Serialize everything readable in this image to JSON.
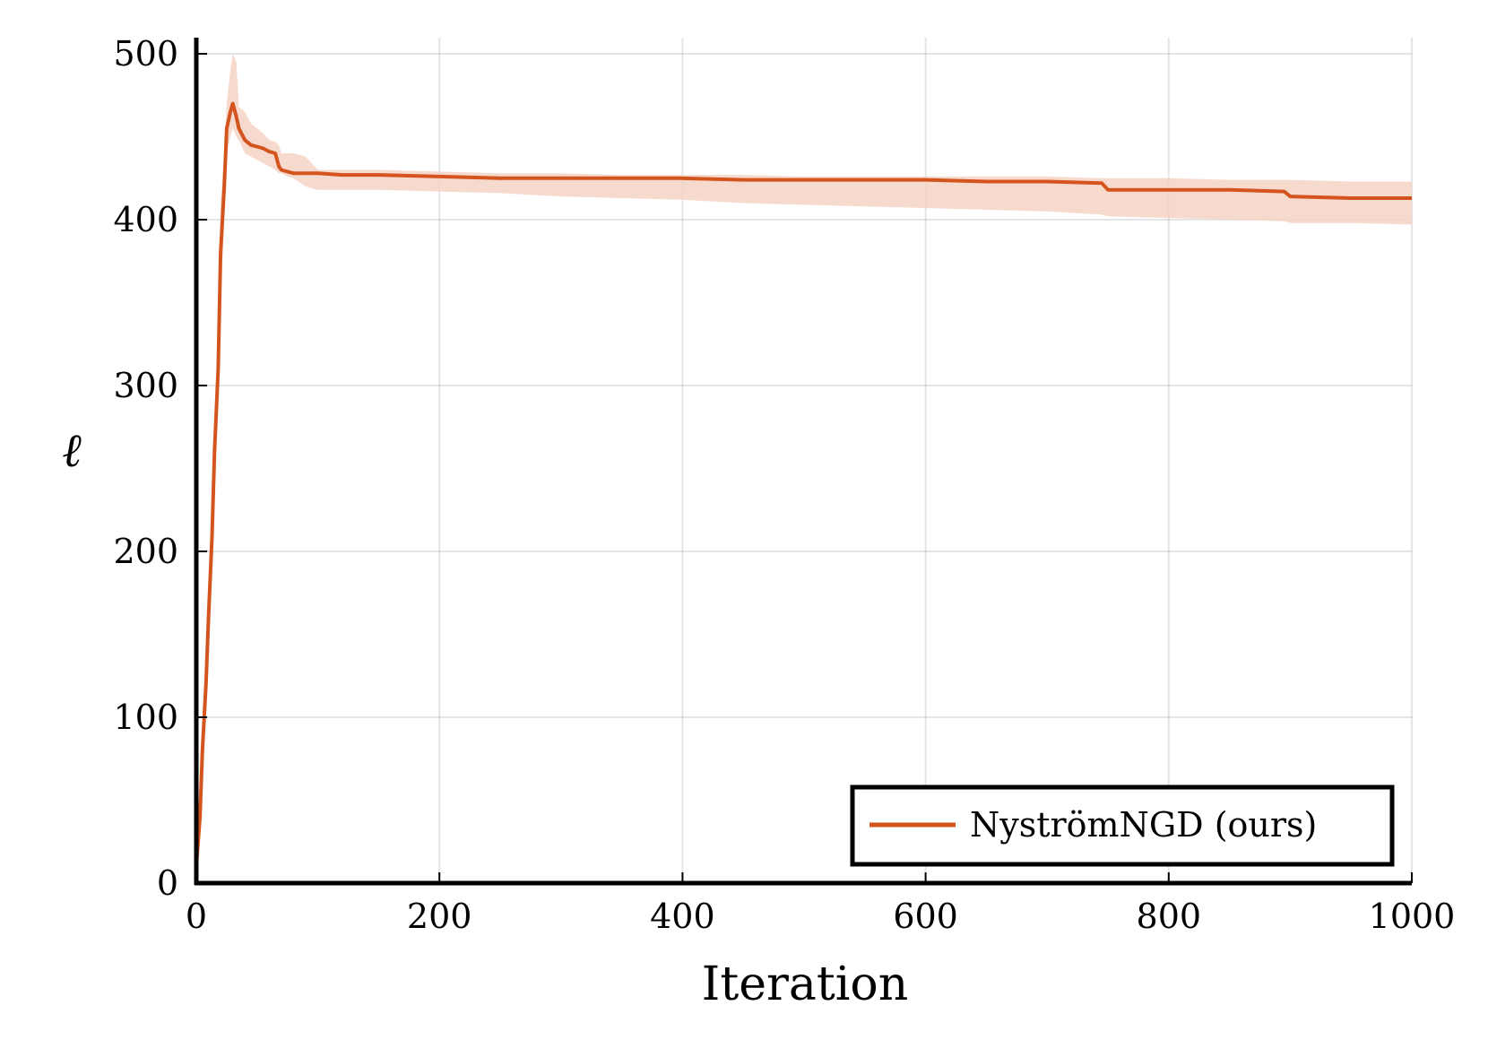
{
  "chart_data": {
    "type": "line",
    "title": "",
    "xlabel": "Iteration",
    "ylabel": "ℓ",
    "xlim": [
      0,
      1000
    ],
    "ylim": [
      0,
      500
    ],
    "xticks": [
      0,
      200,
      400,
      600,
      800,
      1000
    ],
    "yticks": [
      0,
      100,
      200,
      300,
      400,
      500
    ],
    "xtick_labels": [
      "0",
      "200",
      "400",
      "600",
      "800",
      "1000"
    ],
    "ytick_labels": [
      "0",
      "100",
      "200",
      "300",
      "400",
      "500"
    ],
    "grid": true,
    "legend_position": "bottom-right",
    "series": [
      {
        "name": "NyströmNGD (ours)",
        "color": "#d4541e",
        "band_color": "#f5d3c5",
        "x": [
          0,
          3,
          5,
          8,
          10,
          13,
          15,
          18,
          20,
          23,
          25,
          28,
          30,
          33,
          35,
          40,
          45,
          50,
          55,
          60,
          65,
          68,
          70,
          75,
          80,
          90,
          100,
          120,
          150,
          200,
          250,
          300,
          350,
          400,
          450,
          500,
          550,
          600,
          650,
          700,
          745,
          750,
          800,
          850,
          895,
          900,
          950,
          1000
        ],
        "y": [
          10,
          40,
          80,
          120,
          160,
          210,
          260,
          310,
          380,
          420,
          455,
          465,
          470,
          462,
          455,
          448,
          445,
          444,
          443,
          441,
          440,
          432,
          430,
          429,
          428,
          428,
          428,
          427,
          427,
          426,
          425,
          425,
          425,
          425,
          424,
          424,
          424,
          424,
          423,
          423,
          422,
          418,
          418,
          418,
          417,
          414,
          413,
          413
        ],
        "lower": [
          0,
          30,
          60,
          100,
          140,
          190,
          240,
          290,
          350,
          400,
          440,
          450,
          455,
          450,
          448,
          440,
          438,
          436,
          434,
          432,
          430,
          428,
          428,
          426,
          425,
          420,
          418,
          418,
          418,
          417,
          416,
          414,
          413,
          412,
          410,
          409,
          408,
          407,
          406,
          405,
          403,
          402,
          401,
          400,
          399,
          398,
          398,
          397
        ],
        "upper": [
          20,
          50,
          100,
          140,
          180,
          230,
          280,
          330,
          410,
          440,
          470,
          490,
          500,
          495,
          468,
          465,
          458,
          455,
          452,
          448,
          447,
          445,
          440,
          440,
          440,
          438,
          430,
          430,
          430,
          429,
          428,
          428,
          427,
          427,
          427,
          426,
          426,
          426,
          426,
          426,
          425,
          425,
          425,
          424,
          424,
          424,
          423,
          423
        ]
      }
    ]
  }
}
